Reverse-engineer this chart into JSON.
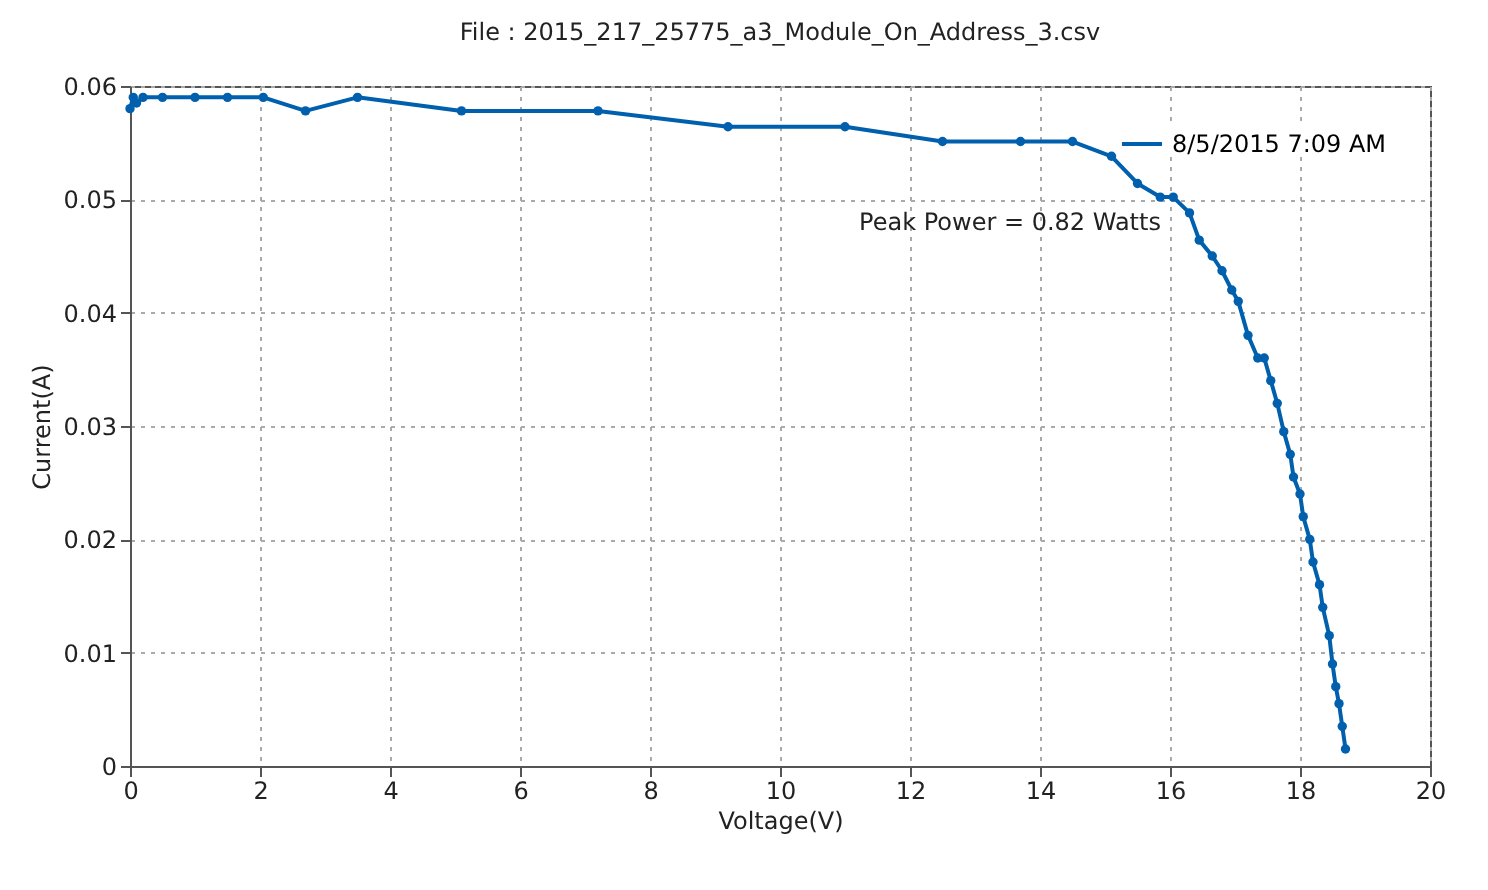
{
  "chart_data": {
    "type": "line",
    "title": "File : 2015_217_25775_a3_Module_On_Address_3.csv",
    "xlabel": "Voltage(V)",
    "ylabel": "Current(A)",
    "annotations": [
      "Peak Power = 0.82 Watts"
    ],
    "x": [
      0.0,
      0.05,
      0.1,
      0.2,
      0.5,
      1.0,
      1.5,
      2.05,
      2.7,
      3.5,
      5.1,
      7.2,
      9.2,
      11.0,
      12.5,
      13.7,
      14.5,
      15.1,
      15.5,
      15.85,
      16.05,
      16.3,
      16.45,
      16.65,
      16.8,
      16.95,
      17.05,
      17.2,
      17.35,
      17.45,
      17.55,
      17.65,
      17.75,
      17.85,
      17.9,
      18.0,
      18.05,
      18.15,
      18.2,
      18.3,
      18.35,
      18.45,
      18.5,
      18.55,
      18.6,
      18.65,
      18.7
    ],
    "series": [
      {
        "name": "8/5/2015  7:09 AM",
        "color": "#0060ad",
        "values": [
          0.058,
          0.059,
          0.0585,
          0.059,
          0.059,
          0.059,
          0.059,
          0.059,
          0.0578,
          0.059,
          0.0578,
          0.0578,
          0.0564,
          0.0564,
          0.0551,
          0.0551,
          0.0551,
          0.0538,
          0.0514,
          0.0502,
          0.0502,
          0.0488,
          0.0464,
          0.045,
          0.0437,
          0.042,
          0.041,
          0.038,
          0.036,
          0.036,
          0.034,
          0.032,
          0.0295,
          0.0275,
          0.0255,
          0.024,
          0.022,
          0.02,
          0.018,
          0.016,
          0.014,
          0.0115,
          0.009,
          0.007,
          0.0055,
          0.0035,
          0.0015
        ]
      }
    ],
    "xlim": [
      0,
      20
    ],
    "xticks": [
      0,
      2,
      4,
      6,
      8,
      10,
      12,
      14,
      16,
      18,
      20
    ],
    "ylim": [
      0,
      0.06
    ],
    "yticks": [
      0,
      0.01,
      0.02,
      0.03,
      0.04,
      0.05,
      0.06
    ],
    "grid": true,
    "legend": "top right",
    "marker": "circle",
    "line_style": "solid"
  }
}
